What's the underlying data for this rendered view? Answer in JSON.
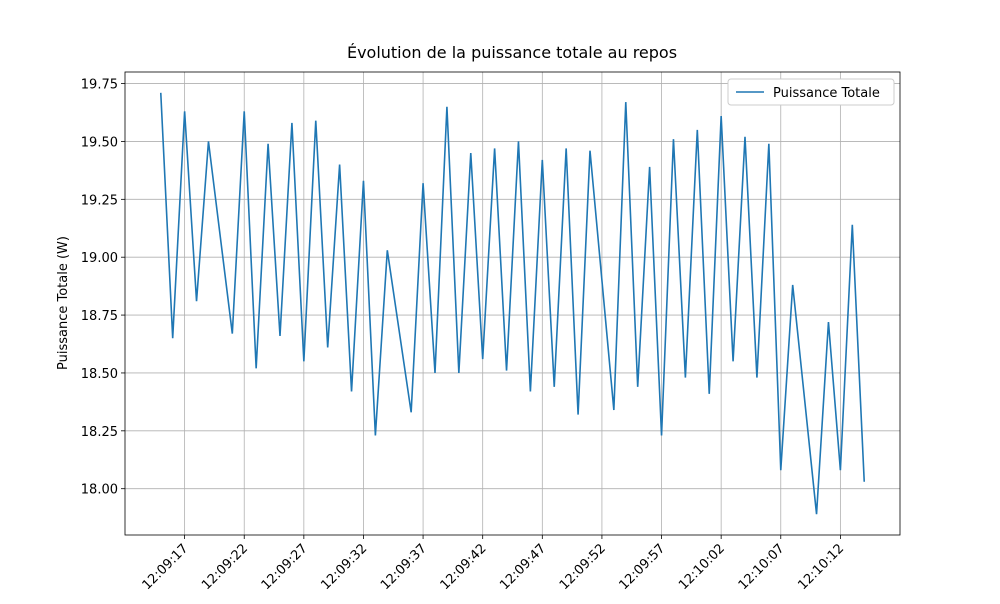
{
  "chart_data": {
    "type": "line",
    "title": "Évolution de la puissance totale au repos",
    "y_label": "Puissance Totale (W)",
    "x": [
      "12:09:15",
      "12:09:16",
      "12:09:17",
      "12:09:18",
      "12:09:19",
      "12:09:21",
      "12:09:22",
      "12:09:23",
      "12:09:24",
      "12:09:25",
      "12:09:26",
      "12:09:27",
      "12:09:28",
      "12:09:29",
      "12:09:30",
      "12:09:31",
      "12:09:32",
      "12:09:33",
      "12:09:34",
      "12:09:36",
      "12:09:37",
      "12:09:38",
      "12:09:39",
      "12:09:40",
      "12:09:41",
      "12:09:42",
      "12:09:43",
      "12:09:44",
      "12:09:45",
      "12:09:46",
      "12:09:47",
      "12:09:48",
      "12:09:49",
      "12:09:50",
      "12:09:51",
      "12:09:53",
      "12:09:54",
      "12:09:55",
      "12:09:56",
      "12:09:57",
      "12:09:58",
      "12:09:59",
      "12:10:00",
      "12:10:01",
      "12:10:02",
      "12:10:03",
      "12:10:04",
      "12:10:05",
      "12:10:06",
      "12:10:07",
      "12:10:08",
      "12:10:10",
      "12:10:11",
      "12:10:12",
      "12:10:13",
      "12:10:14"
    ],
    "series": [
      {
        "name": "Puissance Totale",
        "color": "#1f77b4",
        "values": [
          19.71,
          18.65,
          19.63,
          18.81,
          19.5,
          18.67,
          19.63,
          18.52,
          19.49,
          18.66,
          19.58,
          18.55,
          19.59,
          18.61,
          19.4,
          18.42,
          19.33,
          18.23,
          19.03,
          18.33,
          19.32,
          18.5,
          19.65,
          18.5,
          19.45,
          18.56,
          19.47,
          18.51,
          19.5,
          18.42,
          19.42,
          18.44,
          19.47,
          18.32,
          19.46,
          18.34,
          19.67,
          18.44,
          19.39,
          18.23,
          19.51,
          18.48,
          19.55,
          18.41,
          19.61,
          18.55,
          19.52,
          18.48,
          19.49,
          18.08,
          18.88,
          17.89,
          18.72,
          18.08,
          19.14,
          18.03
        ]
      }
    ],
    "xlim": [
      "12:09:12",
      "12:10:17"
    ],
    "xticks": [
      "12:09:17",
      "12:09:22",
      "12:09:27",
      "12:09:32",
      "12:09:37",
      "12:09:42",
      "12:09:47",
      "12:09:52",
      "12:09:57",
      "12:10:02",
      "12:10:07",
      "12:10:12"
    ],
    "ylim": [
      17.8,
      19.8
    ],
    "yticks": [
      {
        "value": 18,
        "label": "18.00"
      },
      {
        "value": 18.25,
        "label": "18.25"
      },
      {
        "value": 18.5,
        "label": "18.50"
      },
      {
        "value": 18.75,
        "label": "18.75"
      },
      {
        "value": 19,
        "label": "19.00"
      },
      {
        "value": 19.25,
        "label": "19.25"
      },
      {
        "value": 19.5,
        "label": "19.50"
      },
      {
        "value": 19.75,
        "label": "19.75"
      }
    ],
    "grid": true,
    "legend": "upper right"
  }
}
